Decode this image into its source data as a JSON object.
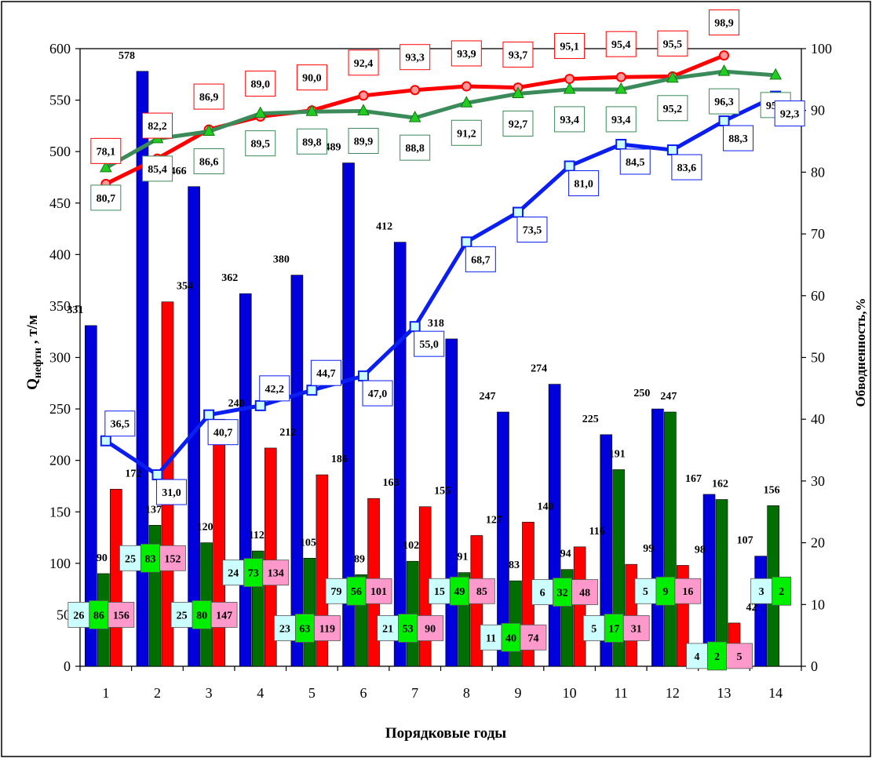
{
  "chart_data": {
    "type": "bar",
    "xlabel": "Порядковые годы",
    "ylabel_left": {
      "main": "Q",
      "sub": "нефти",
      "unit": " , т/м"
    },
    "ylabel_right": "Обводненность,%",
    "ylim_left": [
      0,
      600
    ],
    "ylim_right": [
      0,
      100
    ],
    "yticks_left": [
      "0",
      "50",
      "100",
      "150",
      "200",
      "250",
      "300",
      "350",
      "400",
      "450",
      "500",
      "550",
      "600"
    ],
    "yticks_right": [
      "0",
      "10",
      "20",
      "30",
      "40",
      "50",
      "60",
      "70",
      "80",
      "90",
      "100"
    ],
    "categories": [
      "1",
      "2",
      "3",
      "4",
      "5",
      "6",
      "7",
      "8",
      "9",
      "10",
      "11",
      "12",
      "13",
      "14"
    ],
    "colors": {
      "blue": "#0000dd",
      "green": "#006e00",
      "red": "#ff0000",
      "line_green": "#3b8a5a",
      "line_blue": "#0a1ef0",
      "line_red": "#ff0000"
    },
    "bar_series": [
      {
        "color": "blue",
        "values": [
          331,
          578,
          466,
          362,
          380,
          489,
          412,
          318,
          247,
          274,
          225,
          250,
          167,
          107
        ],
        "labels": [
          "331",
          "578",
          "466",
          "362",
          "380",
          "489",
          "412",
          "318",
          "247",
          "274",
          "225",
          "250",
          "167",
          "107"
        ]
      },
      {
        "color": "green",
        "values": [
          90,
          137,
          120,
          112,
          105,
          89,
          102,
          91,
          83,
          94,
          191,
          247,
          162,
          156
        ],
        "labels": [
          "90",
          "137",
          "120",
          "112",
          "105",
          "89",
          "102",
          "91",
          "83",
          "94",
          "191",
          "247",
          "162",
          "156"
        ]
      },
      {
        "color": "red",
        "values": [
          172,
          354,
          240,
          212,
          186,
          163,
          155,
          127,
          140,
          116,
          99,
          98,
          42,
          null
        ],
        "labels": [
          "172",
          "354",
          "240",
          "212",
          "186",
          "163",
          "155",
          "127",
          "140",
          "116",
          "99",
          "98",
          "42",
          ""
        ]
      }
    ],
    "small_boxes": [
      {
        "cat": "1",
        "y": 50,
        "values": [
          "26",
          "86",
          "156"
        ]
      },
      {
        "cat": "2",
        "y": 105,
        "values": [
          "25",
          "83",
          "152"
        ]
      },
      {
        "cat": "3",
        "y": 50,
        "values": [
          "25",
          "80",
          "147"
        ]
      },
      {
        "cat": "4",
        "y": 91,
        "values": [
          "24",
          "73",
          "134"
        ]
      },
      {
        "cat": "5",
        "y": 37,
        "values": [
          "23",
          "63",
          "119"
        ]
      },
      {
        "cat": "6",
        "y": 73,
        "values": [
          "79",
          "56",
          "101"
        ]
      },
      {
        "cat": "7",
        "y": 37,
        "values": [
          "21",
          "53",
          "90"
        ]
      },
      {
        "cat": "8",
        "y": 73,
        "values": [
          "15",
          "49",
          "85"
        ]
      },
      {
        "cat": "9",
        "y": 28,
        "values": [
          "11",
          "40",
          "74"
        ]
      },
      {
        "cat": "10",
        "y": 72,
        "values": [
          "6",
          "32",
          "48"
        ]
      },
      {
        "cat": "11",
        "y": 37,
        "values": [
          "5",
          "17",
          "31"
        ]
      },
      {
        "cat": "12",
        "y": 73,
        "values": [
          "5",
          "9",
          "16"
        ]
      },
      {
        "cat": "13",
        "y": 10,
        "values": [
          "4",
          "2",
          "5"
        ]
      },
      {
        "cat": "14",
        "y": 73,
        "values": [
          "3",
          "2"
        ]
      }
    ],
    "line_series": [
      {
        "color": "line_red",
        "marker": "circle",
        "values": [
          78.1,
          82.2,
          86.9,
          89.0,
          90.0,
          92.4,
          93.3,
          93.9,
          93.7,
          95.1,
          95.4,
          95.5,
          98.9,
          null
        ],
        "labels": [
          "78,1",
          "82,2",
          "86,9",
          "89,0",
          "90,0",
          "92,4",
          "93,3",
          "93,9",
          "93,7",
          "95,1",
          "95,4",
          "95,5",
          "98,9",
          ""
        ]
      },
      {
        "color": "line_green",
        "marker": "triangle",
        "values": [
          80.7,
          85.4,
          86.6,
          89.5,
          89.8,
          89.9,
          88.8,
          91.2,
          92.7,
          93.4,
          93.4,
          95.2,
          96.3,
          95.7
        ],
        "labels": [
          "80,7",
          "85,4",
          "86,6",
          "89,5",
          "89,8",
          "89,9",
          "88,8",
          "91,2",
          "92,7",
          "93,4",
          "93,4",
          "95,2",
          "96,3",
          "95,7"
        ]
      },
      {
        "color": "line_blue",
        "marker": "square",
        "values": [
          36.5,
          31.0,
          40.7,
          42.2,
          44.7,
          47.0,
          55.0,
          68.7,
          73.5,
          81.0,
          84.5,
          83.6,
          88.3,
          92.3
        ],
        "labels": [
          "36,5",
          "31,0",
          "40,7",
          "42,2",
          "44,7",
          "47,0",
          "55,0",
          "68,7",
          "73,5",
          "81,0",
          "84,5",
          "83,6",
          "88,3",
          "92,3"
        ]
      }
    ]
  }
}
